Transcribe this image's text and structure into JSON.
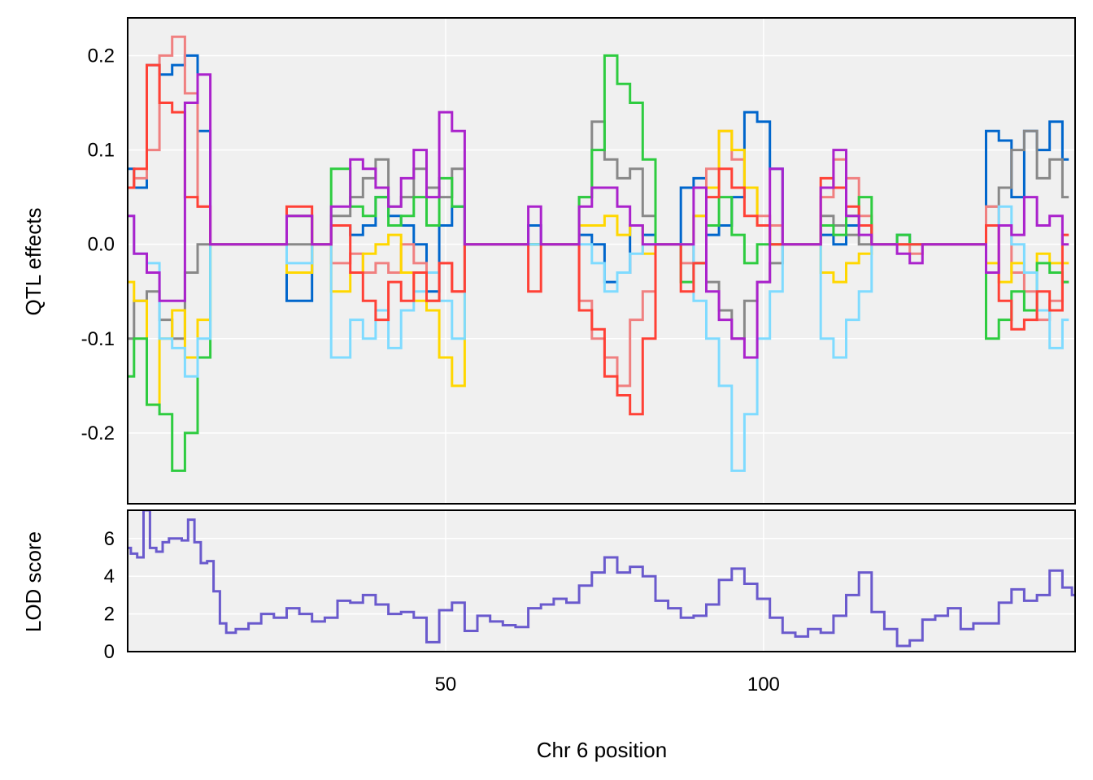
{
  "chart_data": [
    {
      "type": "line",
      "panel": "effects",
      "ylabel": "QTL effects",
      "xlim": [
        0,
        149
      ],
      "ylim": [
        -0.275,
        0.24
      ],
      "x_ticks": [
        50,
        100
      ],
      "y_ticks": [
        -0.2,
        -0.1,
        0.0,
        0.1,
        0.2
      ],
      "y_tick_labels": [
        "-0.2",
        "-0.1",
        "0.0",
        "0.1",
        "0.2"
      ],
      "grid": true,
      "background": "#f0f0f0",
      "x": [
        0,
        2,
        4,
        6,
        8,
        10,
        12,
        14,
        18,
        22,
        28,
        30,
        34,
        36,
        38,
        40,
        42,
        44,
        46,
        48,
        50,
        52,
        54,
        58,
        62,
        64,
        66,
        70,
        72,
        74,
        76,
        78,
        80,
        82,
        84,
        86,
        88,
        90,
        92,
        94,
        96,
        98,
        100,
        102,
        104,
        108,
        110,
        112,
        114,
        116,
        118,
        120,
        122,
        124,
        126,
        128,
        130,
        132,
        134,
        136,
        138,
        140,
        142,
        144,
        146,
        148
      ],
      "series": [
        {
          "color": "#0066cc",
          "values": [
            0.08,
            0.06,
            0.19,
            0.18,
            0.19,
            0.2,
            0.12,
            0.0,
            0.0,
            0.0,
            -0.06,
            0.0,
            0.02,
            0.01,
            0.02,
            0.05,
            0.03,
            0.02,
            0.0,
            -0.05,
            0.02,
            0.04,
            0.0,
            0.0,
            0.0,
            0.02,
            0.0,
            0.0,
            0.01,
            0.0,
            -0.04,
            -0.03,
            0.02,
            0.01,
            0.0,
            0.0,
            0.06,
            0.07,
            0.01,
            0.02,
            0.05,
            0.14,
            0.13,
            0.08,
            0.0,
            0.0,
            0.01,
            0.0,
            0.02,
            0.02,
            0.0,
            0.0,
            0.01,
            0.0,
            0.0,
            0.0,
            0.0,
            0.0,
            0.0,
            0.12,
            0.11,
            0.05,
            0.12,
            0.1,
            0.13,
            0.09
          ]
        },
        {
          "color": "#888888",
          "values": [
            -0.1,
            -0.06,
            -0.05,
            -0.08,
            -0.1,
            -0.03,
            0.0,
            0.0,
            0.0,
            0.0,
            0.0,
            0.0,
            0.03,
            0.05,
            0.07,
            0.09,
            0.04,
            0.05,
            0.08,
            0.06,
            0.05,
            0.08,
            0.0,
            0.0,
            0.0,
            0.0,
            0.0,
            0.0,
            0.05,
            0.13,
            0.09,
            0.07,
            0.08,
            0.03,
            0.0,
            0.0,
            0.0,
            -0.02,
            -0.04,
            -0.07,
            -0.1,
            -0.06,
            -0.04,
            -0.02,
            0.0,
            0.0,
            0.03,
            0.02,
            0.01,
            0.0,
            0.0,
            0.0,
            0.0,
            0.0,
            0.0,
            0.0,
            0.0,
            0.0,
            0.0,
            0.04,
            0.06,
            0.1,
            0.12,
            0.07,
            0.09,
            0.05
          ]
        },
        {
          "color": "#f08080",
          "values": [
            0.06,
            0.07,
            0.1,
            0.2,
            0.22,
            0.16,
            0.04,
            0.0,
            0.0,
            0.0,
            0.03,
            0.0,
            -0.02,
            -0.01,
            -0.03,
            -0.02,
            -0.03,
            0.0,
            -0.02,
            -0.06,
            -0.02,
            -0.05,
            0.0,
            0.0,
            0.0,
            0.0,
            0.0,
            0.0,
            -0.06,
            -0.1,
            -0.12,
            -0.15,
            -0.08,
            -0.05,
            0.0,
            0.0,
            -0.02,
            0.03,
            0.08,
            0.12,
            0.09,
            0.06,
            0.03,
            0.02,
            0.0,
            0.0,
            0.05,
            0.09,
            0.07,
            0.03,
            0.0,
            0.0,
            0.0,
            -0.01,
            0.0,
            0.0,
            0.0,
            0.0,
            0.0,
            0.04,
            0.02,
            -0.03,
            -0.05,
            -0.08,
            -0.06,
            -0.04
          ]
        },
        {
          "color": "#ffd700",
          "values": [
            -0.04,
            -0.06,
            -0.17,
            -0.1,
            -0.07,
            -0.12,
            -0.08,
            0.0,
            0.0,
            0.0,
            -0.03,
            0.0,
            -0.05,
            -0.03,
            -0.01,
            0.0,
            0.01,
            -0.03,
            -0.06,
            -0.07,
            -0.12,
            -0.15,
            0.0,
            0.0,
            0.0,
            0.0,
            0.0,
            0.0,
            0.02,
            0.02,
            0.03,
            0.01,
            0.02,
            -0.01,
            0.0,
            0.0,
            0.0,
            0.03,
            0.06,
            0.12,
            0.1,
            0.06,
            0.02,
            0.0,
            0.0,
            0.0,
            -0.03,
            -0.04,
            -0.02,
            -0.01,
            0.0,
            0.0,
            0.0,
            0.0,
            0.0,
            0.0,
            0.0,
            0.0,
            0.0,
            -0.02,
            -0.04,
            -0.02,
            -0.03,
            -0.01,
            -0.02,
            -0.02
          ]
        },
        {
          "color": "#2ecc40",
          "values": [
            -0.14,
            -0.1,
            -0.17,
            -0.18,
            -0.24,
            -0.2,
            -0.12,
            0.0,
            0.0,
            0.0,
            0.03,
            0.0,
            0.08,
            0.04,
            0.03,
            0.05,
            0.02,
            0.03,
            0.05,
            0.02,
            0.07,
            0.04,
            0.0,
            0.0,
            0.0,
            0.0,
            0.0,
            0.0,
            0.05,
            0.1,
            0.2,
            0.17,
            0.15,
            0.09,
            0.0,
            0.0,
            -0.04,
            -0.02,
            0.02,
            0.05,
            0.01,
            -0.02,
            0.0,
            0.0,
            0.0,
            0.0,
            0.02,
            0.01,
            0.03,
            0.05,
            0.0,
            0.0,
            0.01,
            0.0,
            0.0,
            0.0,
            0.0,
            0.0,
            0.0,
            -0.1,
            -0.08,
            -0.05,
            -0.07,
            -0.02,
            -0.03,
            -0.04
          ]
        },
        {
          "color": "#7fdbff",
          "values": [
            0.03,
            -0.01,
            -0.02,
            -0.1,
            -0.11,
            -0.14,
            -0.1,
            0.0,
            0.0,
            0.0,
            -0.02,
            0.0,
            -0.12,
            -0.08,
            -0.1,
            -0.07,
            -0.11,
            -0.07,
            -0.05,
            -0.03,
            -0.06,
            -0.1,
            0.0,
            0.0,
            0.0,
            0.0,
            0.0,
            0.0,
            0.0,
            -0.02,
            -0.05,
            -0.03,
            -0.01,
            0.0,
            0.0,
            0.0,
            0.0,
            -0.06,
            -0.1,
            -0.15,
            -0.24,
            -0.18,
            -0.1,
            -0.05,
            0.0,
            0.0,
            -0.1,
            -0.12,
            -0.08,
            -0.05,
            0.0,
            0.0,
            0.0,
            0.0,
            0.0,
            0.0,
            0.0,
            0.0,
            0.0,
            0.02,
            0.04,
            0.0,
            -0.03,
            -0.07,
            -0.11,
            -0.08
          ]
        },
        {
          "color": "#ff4136",
          "values": [
            0.06,
            0.08,
            0.19,
            0.15,
            0.14,
            0.05,
            0.04,
            0.0,
            0.0,
            0.0,
            0.04,
            0.0,
            0.02,
            -0.03,
            -0.06,
            -0.08,
            -0.04,
            -0.06,
            -0.03,
            -0.06,
            -0.02,
            -0.05,
            0.0,
            0.0,
            0.0,
            -0.05,
            0.0,
            0.0,
            -0.07,
            -0.09,
            -0.14,
            -0.16,
            -0.18,
            -0.1,
            0.0,
            0.0,
            -0.05,
            -0.02,
            0.05,
            0.08,
            0.06,
            0.03,
            0.02,
            0.0,
            0.0,
            0.0,
            0.07,
            0.06,
            0.04,
            0.02,
            0.0,
            0.0,
            0.0,
            0.0,
            0.0,
            0.0,
            0.0,
            0.0,
            0.0,
            0.02,
            -0.06,
            -0.09,
            -0.08,
            -0.05,
            -0.07,
            0.01
          ]
        },
        {
          "color": "#aa22cc",
          "values": [
            0.03,
            -0.01,
            -0.03,
            -0.06,
            -0.06,
            0.15,
            0.18,
            0.0,
            0.0,
            0.0,
            0.03,
            0.0,
            0.04,
            0.09,
            0.08,
            0.06,
            0.04,
            0.07,
            0.1,
            0.05,
            0.14,
            0.12,
            0.0,
            0.0,
            0.0,
            0.04,
            0.0,
            0.0,
            0.04,
            0.06,
            0.06,
            0.04,
            0.02,
            0.0,
            0.0,
            0.0,
            0.0,
            0.06,
            -0.05,
            -0.08,
            -0.1,
            -0.12,
            -0.04,
            0.08,
            0.0,
            0.0,
            0.06,
            0.1,
            0.03,
            0.01,
            0.0,
            0.0,
            -0.01,
            -0.02,
            0.0,
            0.0,
            0.0,
            0.0,
            0.0,
            -0.03,
            0.02,
            0.01,
            0.05,
            0.02,
            0.03,
            0.0
          ]
        }
      ]
    },
    {
      "type": "line",
      "panel": "lod",
      "xlabel": "Chr 6 position",
      "ylabel": "LOD score",
      "xlim": [
        0,
        149
      ],
      "ylim": [
        0,
        7.5
      ],
      "x_ticks": [
        50,
        100
      ],
      "x_tick_labels": [
        "50",
        "100"
      ],
      "y_ticks": [
        0,
        2,
        4,
        6
      ],
      "y_tick_labels": [
        "0",
        "2",
        "4",
        "6"
      ],
      "grid": true,
      "background": "#f0f0f0",
      "x": [
        0,
        1,
        2,
        3,
        4,
        5,
        6,
        7,
        8,
        9,
        10,
        11,
        12,
        13,
        14,
        15,
        16,
        18,
        20,
        22,
        24,
        26,
        28,
        30,
        32,
        34,
        36,
        38,
        40,
        42,
        44,
        46,
        48,
        50,
        52,
        54,
        56,
        58,
        60,
        62,
        64,
        66,
        68,
        70,
        72,
        74,
        76,
        78,
        80,
        82,
        84,
        86,
        88,
        90,
        92,
        94,
        96,
        98,
        100,
        102,
        104,
        106,
        108,
        110,
        112,
        114,
        116,
        118,
        120,
        122,
        124,
        126,
        128,
        130,
        132,
        134,
        136,
        138,
        140,
        142,
        144,
        146,
        148,
        149
      ],
      "series": [
        {
          "color": "#6a5acd",
          "values": [
            5.5,
            5.2,
            5.0,
            7.5,
            5.5,
            5.3,
            5.8,
            6.0,
            6.0,
            5.9,
            7.0,
            5.8,
            4.7,
            4.8,
            3.2,
            1.5,
            1.0,
            1.2,
            1.5,
            2.0,
            1.8,
            2.3,
            2.0,
            1.6,
            1.8,
            2.7,
            2.6,
            3.0,
            2.5,
            2.0,
            2.1,
            1.8,
            0.5,
            2.2,
            2.6,
            1.1,
            1.9,
            1.6,
            1.4,
            1.3,
            2.3,
            2.5,
            2.8,
            2.6,
            3.5,
            4.2,
            5.0,
            4.2,
            4.5,
            4.0,
            2.7,
            2.3,
            1.8,
            1.9,
            2.5,
            3.8,
            4.4,
            3.6,
            2.8,
            1.8,
            1.0,
            0.8,
            1.2,
            1.0,
            1.9,
            3.0,
            4.2,
            2.1,
            1.2,
            0.3,
            0.6,
            1.7,
            1.9,
            2.3,
            1.2,
            1.5,
            1.5,
            2.6,
            3.3,
            2.7,
            3.0,
            4.3,
            3.4,
            3.0
          ]
        }
      ]
    }
  ]
}
